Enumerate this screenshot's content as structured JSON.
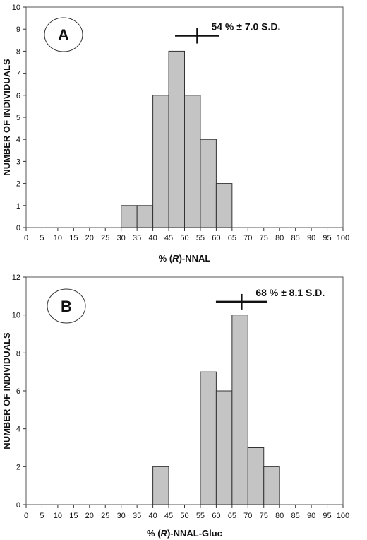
{
  "chart_data": [
    {
      "type": "bar",
      "panel_label": "A",
      "xlabel_prefix": "% (",
      "xlabel_italic": "R",
      "xlabel_suffix": ")-NNAL",
      "ylabel": "NUMBER OF INDIVIDUALS",
      "xlim": [
        0,
        100
      ],
      "ylim": [
        0,
        10
      ],
      "x_ticks": [
        0,
        5,
        10,
        15,
        20,
        25,
        30,
        35,
        40,
        45,
        50,
        55,
        60,
        65,
        70,
        75,
        80,
        85,
        90,
        95,
        100
      ],
      "y_ticks": [
        0,
        1,
        2,
        3,
        4,
        5,
        6,
        7,
        8,
        9,
        10
      ],
      "bin_width": 5,
      "bins": [
        {
          "start": 30,
          "count": 1
        },
        {
          "start": 35,
          "count": 1
        },
        {
          "start": 40,
          "count": 6
        },
        {
          "start": 45,
          "count": 8
        },
        {
          "start": 50,
          "count": 6
        },
        {
          "start": 55,
          "count": 4
        },
        {
          "start": 60,
          "count": 2
        }
      ],
      "mean": 54,
      "sd": 7.0,
      "marker_y": 8.7,
      "annotation": "54 % ± 7.0 S.D.",
      "bar_color": "#c4c4c4"
    },
    {
      "type": "bar",
      "panel_label": "B",
      "xlabel_prefix": "% (",
      "xlabel_italic": "R",
      "xlabel_suffix": ")-NNAL-Gluc",
      "ylabel": "NUMBER OF INDIVIDUALS",
      "xlim": [
        0,
        100
      ],
      "ylim": [
        0,
        12
      ],
      "x_ticks": [
        0,
        5,
        10,
        15,
        20,
        25,
        30,
        35,
        40,
        45,
        50,
        55,
        60,
        65,
        70,
        75,
        80,
        85,
        90,
        95,
        100
      ],
      "y_ticks": [
        0,
        2,
        4,
        6,
        8,
        10,
        12
      ],
      "bin_width": 5,
      "bins": [
        {
          "start": 40,
          "count": 2
        },
        {
          "start": 55,
          "count": 7
        },
        {
          "start": 60,
          "count": 6
        },
        {
          "start": 65,
          "count": 10
        },
        {
          "start": 70,
          "count": 3
        },
        {
          "start": 75,
          "count": 2
        }
      ],
      "mean": 68,
      "sd": 8.1,
      "marker_y": 10.7,
      "annotation": "68 % ± 8.1 S.D.",
      "bar_color": "#c4c4c4"
    }
  ]
}
